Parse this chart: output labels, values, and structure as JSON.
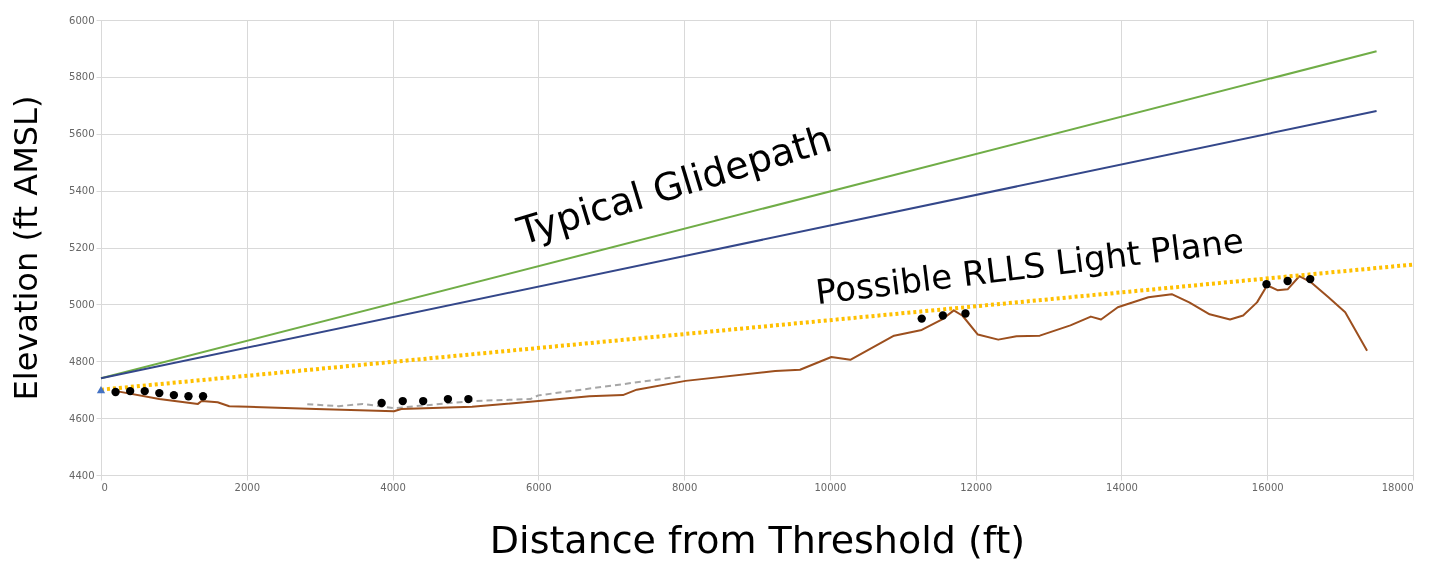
{
  "chart_data": {
    "type": "line",
    "xlabel": "Distance from Threshold (ft)",
    "ylabel": "Elevation (ft AMSL)",
    "xlim": [
      0,
      18000
    ],
    "xticks": [
      0,
      2000,
      4000,
      6000,
      8000,
      10000,
      12000,
      14000,
      16000,
      18000
    ],
    "ylim": [
      4400,
      6000
    ],
    "yticks": [
      4400,
      4600,
      4800,
      5000,
      5200,
      5400,
      5600,
      5800,
      6000
    ],
    "grid": true,
    "series": [
      {
        "color": "#70ad47",
        "line_style": "solid",
        "x": [
          0,
          17500
        ],
        "values": [
          4740,
          5890
        ]
      },
      {
        "color": "#34478a",
        "line_style": "solid",
        "x": [
          0,
          17500
        ],
        "values": [
          4740,
          5680
        ]
      },
      {
        "color": "#a6a6a6",
        "line_style": "dashed",
        "x": [
          2830,
          3260,
          3590,
          4020,
          5090,
          5890,
          6000,
          8000
        ],
        "values": [
          4649,
          4642,
          4650,
          4635,
          4660,
          4667,
          4680,
          4748
        ]
      },
      {
        "color": "#9c4f1e",
        "line_style": "solid",
        "x": [
          210,
          800,
          1330,
          1380,
          1600,
          1760,
          2020,
          2950,
          4020,
          4120,
          5090,
          6000,
          6700,
          7160,
          7350,
          8020,
          9250,
          9590,
          10020,
          10280,
          10880,
          11260,
          11540,
          11700,
          11820,
          12030,
          12310,
          12560,
          12880,
          13300,
          13580,
          13720,
          13950,
          14370,
          14690,
          14930,
          15210,
          15490,
          15670,
          15860,
          16000,
          16140,
          16280,
          16440,
          16600,
          16840,
          17070,
          17370
        ],
        "values": [
          4695,
          4667,
          4650,
          4660,
          4656,
          4642,
          4640,
          4632,
          4624,
          4632,
          4640,
          4660,
          4677,
          4681,
          4700,
          4731,
          4766,
          4770,
          4815,
          4805,
          4890,
          4910,
          4947,
          4979,
          4960,
          4894,
          4876,
          4888,
          4890,
          4926,
          4957,
          4947,
          4990,
          5025,
          5036,
          5007,
          4965,
          4947,
          4961,
          5007,
          5067,
          5050,
          5053,
          5099,
          5078,
          5025,
          4972,
          4837
        ]
      },
      {
        "color": "#ffc000",
        "line_style": "dotted",
        "x": [
          0,
          18000
        ],
        "values": [
          4700,
          5140
        ]
      },
      {
        "type": "scatter",
        "color": "#000000",
        "marker": "circle",
        "x": [
          200,
          400,
          600,
          800,
          1000,
          1200,
          1400,
          3850,
          4140,
          4420,
          4760,
          5040,
          11260,
          11550,
          11860,
          15990,
          16280,
          16590
        ],
        "values": [
          4692,
          4695,
          4695,
          4688,
          4681,
          4677,
          4677,
          4653,
          4660,
          4660,
          4667,
          4667,
          4950,
          4961,
          4968,
          5071,
          5082,
          5089
        ]
      },
      {
        "type": "scatter",
        "color": "#4472c4",
        "marker": "triangle",
        "x": [
          0
        ],
        "values": [
          4700
        ]
      }
    ],
    "annotations": [
      "Typical Glidepath",
      "Possible RLLS Light Plane"
    ]
  }
}
